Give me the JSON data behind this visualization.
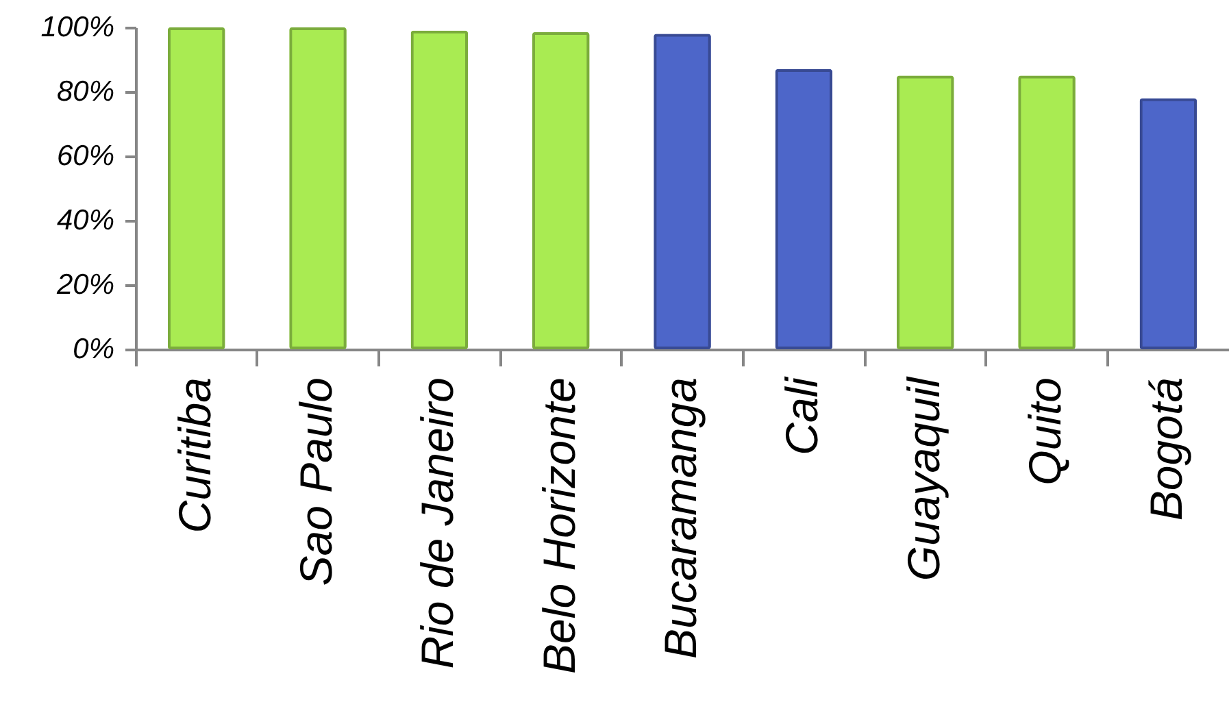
{
  "chart_data": {
    "type": "bar",
    "categories": [
      "Curitiba",
      "Sao Paulo",
      "Rio de Janeiro",
      "Belo Horizonte",
      "Bucaramanga",
      "Cali",
      "Guayaquil",
      "Quito",
      "Bogotá"
    ],
    "values": [
      100,
      100,
      99,
      98.5,
      98,
      87,
      85,
      85,
      78
    ],
    "colors": [
      "#a9eb52",
      "#a9eb52",
      "#a9eb52",
      "#a9eb52",
      "#4d66c9",
      "#4d66c9",
      "#a9eb52",
      "#a9eb52",
      "#4d66c9"
    ],
    "ylim": [
      0,
      100
    ],
    "yticks": [
      {
        "value": 0,
        "label": "0%"
      },
      {
        "value": 20,
        "label": "20%"
      },
      {
        "value": 40,
        "label": "40%"
      },
      {
        "value": 60,
        "label": "60%"
      },
      {
        "value": 80,
        "label": "80%"
      },
      {
        "value": 100,
        "label": "100%"
      }
    ],
    "grid": false
  }
}
